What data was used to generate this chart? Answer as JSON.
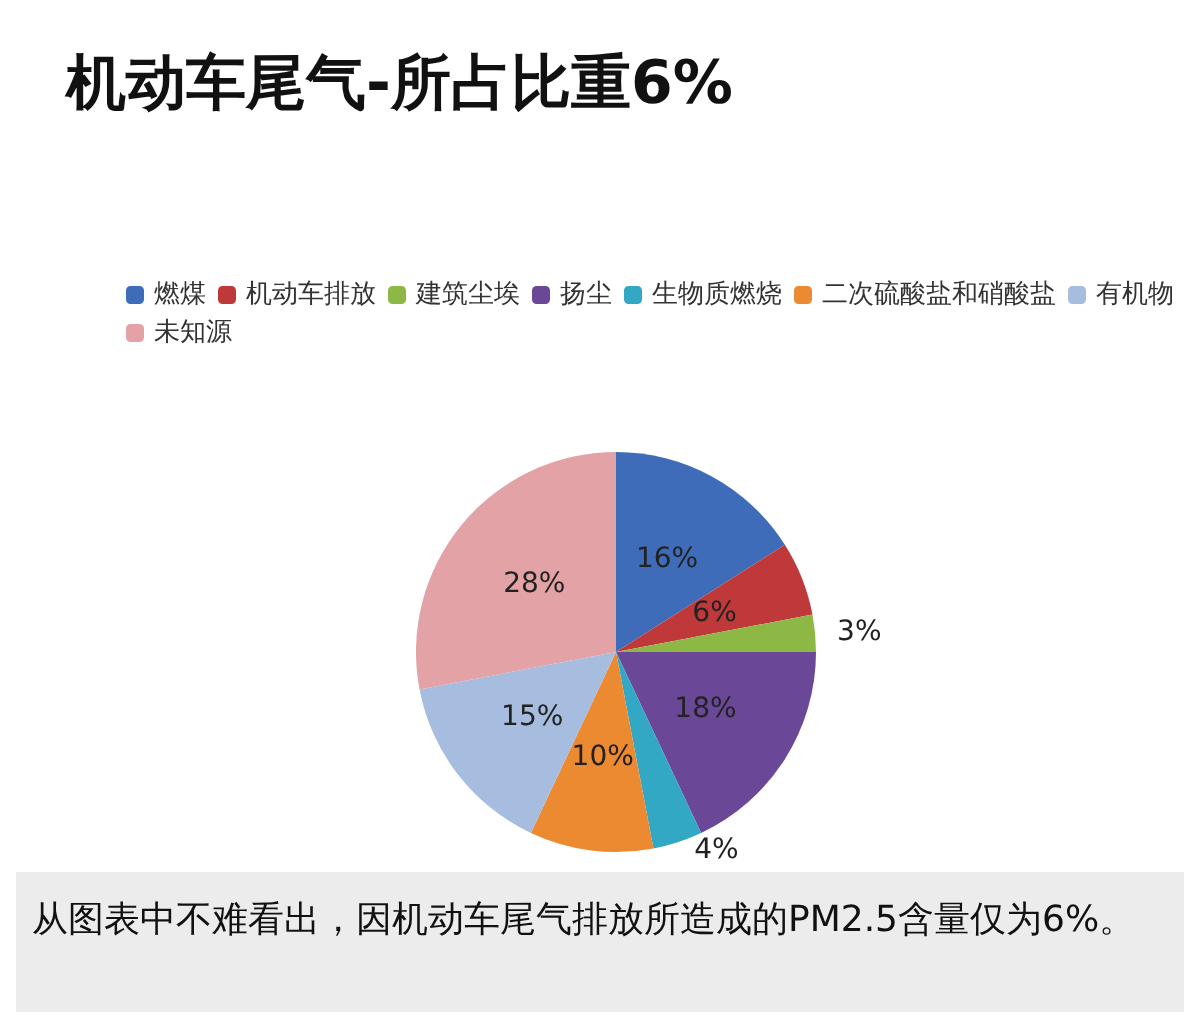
{
  "chart_data": {
    "type": "pie",
    "title": "机动车尾气-所占比重6%",
    "categories": [
      "燃煤",
      "机动车排放",
      "建筑尘埃",
      "扬尘",
      "生物质燃烧",
      "二次硫酸盐和硝酸盐",
      "有机物",
      "未知源"
    ],
    "values": [
      16,
      6,
      3,
      18,
      4,
      10,
      15,
      28
    ],
    "colors": [
      "#3f6cb8",
      "#c0393a",
      "#8db845",
      "#6a4797",
      "#32a8c4",
      "#ec8a32",
      "#a6bde0",
      "#e3a3a6"
    ],
    "value_labels": [
      "16%",
      "6%",
      "3%",
      "18%",
      "4%",
      "10%",
      "15%",
      "28%"
    ],
    "legend": "top",
    "annotations": [
      "从图表中不难看出，因机动车尾气排放所造成的PM2.5含量仅为6%。"
    ]
  }
}
